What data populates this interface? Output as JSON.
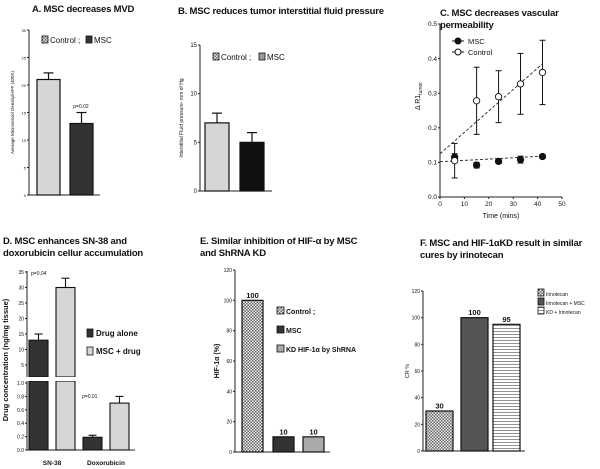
{
  "chart_data": [
    {
      "panel": "A",
      "type": "bar",
      "title": "A. MSC decreases MVD",
      "ylabel": "Average Microvessel Density/HPF (400X)",
      "ylim": [
        0,
        30
      ],
      "yticks": [
        "0",
        "5",
        "10",
        "15",
        "20",
        "25",
        "30"
      ],
      "categories": [
        "Control",
        "MSC"
      ],
      "values": [
        21,
        13
      ],
      "errors": [
        1.2,
        2
      ],
      "annotations": [
        "p=0.02"
      ],
      "legend": [
        "Control ;",
        "MSC"
      ],
      "colors": [
        "#d6d6d6",
        "#333333"
      ]
    },
    {
      "panel": "B",
      "type": "bar",
      "title": "B. MSC reduces tumor interstitial fluid pressure",
      "ylabel": "Interstitial Fluid pressure- mm of Hg",
      "ylim": [
        0,
        15
      ],
      "yticks": [
        "0",
        "5",
        "10",
        "15"
      ],
      "categories": [
        "Control",
        "MSC"
      ],
      "values": [
        7,
        5
      ],
      "errors": [
        1,
        1
      ],
      "legend": [
        "Control ;",
        "MSC"
      ],
      "colors": [
        "#d6d6d6",
        "#111111"
      ]
    },
    {
      "panel": "C",
      "type": "scatter",
      "title": "C. MSC decreases vascular permeability",
      "xlabel": "Time (mins)",
      "ylabel": "Δ R1",
      "ylabel_sub": "tumor",
      "xlim": [
        0,
        50
      ],
      "ylim": [
        0,
        0.5
      ],
      "xticks": [
        "0",
        "10",
        "20",
        "30",
        "40",
        "50"
      ],
      "yticks": [
        "0.0",
        "0.1",
        "0.2",
        "0.3",
        "0.4",
        "0.5"
      ],
      "series": [
        {
          "name": "MSC",
          "marker": "filled-circle",
          "x": [
            6,
            15,
            24,
            33,
            42
          ],
          "y": [
            0.115,
            0.092,
            0.103,
            0.108,
            0.117
          ],
          "errors": [
            0.01,
            0.008,
            0.005,
            0.01,
            0.005
          ],
          "trend": [
            0.102,
            0.118
          ]
        },
        {
          "name": "Control",
          "marker": "open-circle",
          "x": [
            6,
            15,
            24,
            33,
            42
          ],
          "y": [
            0.105,
            0.278,
            0.29,
            0.327,
            0.36
          ],
          "errors": [
            0.05,
            0.097,
            0.075,
            0.088,
            0.093
          ],
          "trend": [
            0.125,
            0.385
          ]
        }
      ],
      "legend_position": "top-left"
    },
    {
      "panel": "D",
      "type": "bar",
      "title": "D. MSC enhances SN-38 and doxorubicin cellur accumulation",
      "ylabel": "Drug concentration (ng/mg tissue)",
      "yticks_upper": [
        "5",
        "10",
        "15",
        "20",
        "25",
        "30",
        "35"
      ],
      "yticks_lower": [
        "0.0",
        "0.2",
        "0.4",
        "0.6",
        "0.8",
        "1.0"
      ],
      "broken_axis": true,
      "categories": [
        "SN-38",
        "Doxorubicin"
      ],
      "series": [
        {
          "name": "Drug alone",
          "values": [
            13,
            0.19
          ],
          "errors": [
            2,
            0.03
          ]
        },
        {
          "name": "MSC + drug",
          "values": [
            30,
            0.7
          ],
          "errors": [
            3,
            0.1
          ]
        }
      ],
      "annotations": [
        "p=0.04",
        "p=0.01"
      ],
      "colors": [
        "#333333",
        "#d6d6d6"
      ]
    },
    {
      "panel": "E",
      "type": "bar",
      "title": "E. Similar inhibition of HIF-α by MSC and ShRNA KD",
      "ylabel": "HIF-1α (%)",
      "ylim": [
        0,
        120
      ],
      "yticks": [
        "0",
        "20",
        "40",
        "60",
        "80",
        "100",
        "120"
      ],
      "categories": [
        "Control ;",
        "MSC",
        "KD HIF-1α by ShRNA"
      ],
      "values": [
        100,
        10,
        10
      ],
      "value_labels": [
        "100",
        "10",
        "10"
      ],
      "legend": [
        "Control ;",
        "MSC",
        "KD HIF-1α by ShRNA"
      ],
      "colors": [
        "checker",
        "#333333",
        "#aaaaaa"
      ]
    },
    {
      "panel": "F",
      "type": "bar",
      "title": "F. MSC and HIF-1αKD result in similar cures by irinotecan",
      "ylabel": "CR %",
      "ylim": [
        0,
        120
      ],
      "yticks": [
        "0",
        "20",
        "40",
        "60",
        "80",
        "100",
        "120"
      ],
      "categories": [
        "Irinotecan",
        "Irinotecan + MSC",
        "KD + Irinotecan"
      ],
      "values": [
        30,
        100,
        95
      ],
      "value_labels": [
        "30",
        "100",
        "95"
      ],
      "legend": [
        "Irinotecan",
        "Irinotecan + MSC",
        "KD + Irinotecan"
      ],
      "colors": [
        "checker",
        "#555555",
        "stripes"
      ]
    }
  ]
}
